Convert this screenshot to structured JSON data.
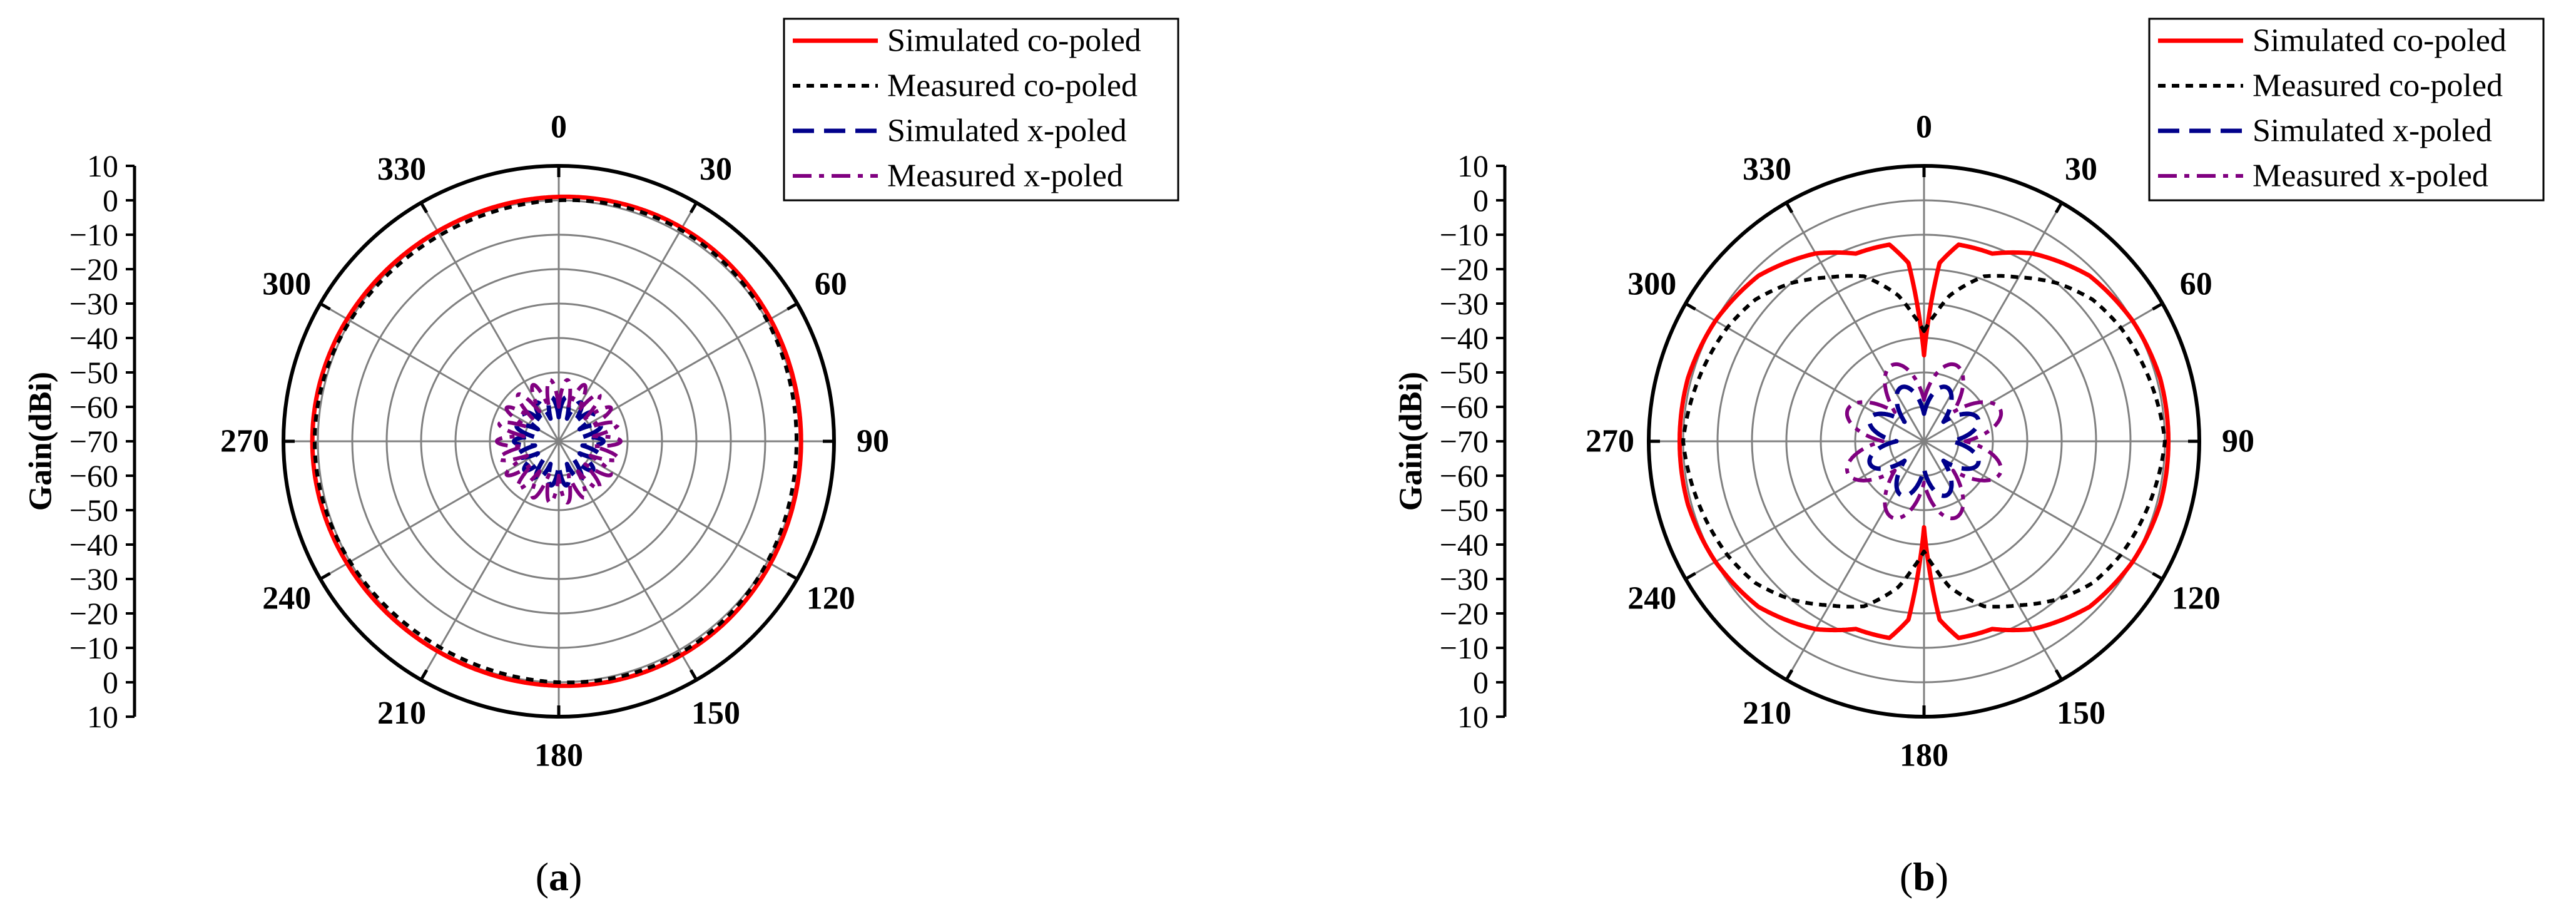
{
  "figure": {
    "captions": [
      "a",
      "b"
    ],
    "paren_open": "(",
    "paren_close": ")"
  },
  "colors": {
    "sim_co": "#ff0000",
    "meas_co": "#000000",
    "sim_x": "#00008b",
    "meas_x": "#800080",
    "grid": "#808080"
  },
  "chart_data": [
    {
      "type": "polar-line",
      "panel": "a",
      "ylabel": "Gain(dBi)",
      "radial_range": [
        -70,
        10
      ],
      "radial_grid": [
        -60,
        -50,
        -40,
        -30,
        -20,
        -10,
        0,
        10
      ],
      "axis_ticks": [
        "10",
        "0",
        "−10",
        "−20",
        "−30",
        "−40",
        "−50",
        "−60",
        "−70",
        "−60",
        "−50",
        "−40",
        "−30",
        "−20",
        "−10",
        "0",
        "10"
      ],
      "angle_labels": [
        "0",
        "30",
        "60",
        "90",
        "120",
        "150",
        "180",
        "210",
        "240",
        "270",
        "300",
        "330"
      ],
      "legend": [
        "Simulated co-poled",
        "Measured co-poled",
        "Simulated x-poled",
        "Measured x-poled"
      ],
      "series": [
        {
          "name": "Simulated co-poled",
          "model": "omni",
          "gain_dbi": 1,
          "ripple_db": 0.6
        },
        {
          "name": "Measured co-poled",
          "model": "omni",
          "gain_dbi": 0,
          "ripple_db": 0.9
        },
        {
          "name": "Simulated x-poled",
          "model": "lobes",
          "base_dbi": -63,
          "amp_db": 6,
          "max_dbi": -55,
          "lobes": 9
        },
        {
          "name": "Measured x-poled",
          "model": "lobes",
          "base_dbi": -60,
          "amp_db": 8,
          "max_dbi": -52,
          "lobes": 11
        }
      ]
    },
    {
      "type": "polar-line",
      "panel": "b",
      "ylabel": "Gain(dBi)",
      "radial_range": [
        -70,
        10
      ],
      "radial_grid": [
        -60,
        -50,
        -40,
        -30,
        -20,
        -10,
        0,
        10
      ],
      "axis_ticks": [
        "10",
        "0",
        "−10",
        "−20",
        "−30",
        "−40",
        "−50",
        "−60",
        "−70",
        "−60",
        "−50",
        "−40",
        "−30",
        "−20",
        "−10",
        "0",
        "10"
      ],
      "angle_labels": [
        "0",
        "30",
        "60",
        "90",
        "120",
        "150",
        "180",
        "210",
        "240",
        "270",
        "300",
        "330"
      ],
      "legend": [
        "Simulated co-poled",
        "Measured co-poled",
        "Simulated x-poled",
        "Measured x-poled"
      ],
      "series": [
        {
          "name": "Simulated co-poled",
          "model": "dipole",
          "angles_deg": [
            0,
            2,
            5,
            10,
            20,
            30,
            45,
            60,
            75,
            90
          ],
          "gain_dbi": [
            -45,
            -35,
            -18,
            -12,
            -12,
            -7,
            -2,
            0,
            1,
            1
          ]
        },
        {
          "name": "Measured co-poled",
          "model": "dipole",
          "angles_deg": [
            0,
            5,
            10,
            20,
            30,
            40,
            50,
            60,
            75,
            90
          ],
          "gain_dbi": [
            -38,
            -33,
            -27,
            -19,
            -15,
            -10,
            -6,
            -4,
            -2,
            0
          ]
        },
        {
          "name": "Simulated x-poled",
          "model": "lobes",
          "base_dbi": -62,
          "amp_db": 9,
          "max_dbi": -50,
          "lobes": 4
        },
        {
          "name": "Measured x-poled",
          "model": "lobes",
          "base_dbi": -58,
          "amp_db": 12,
          "max_dbi": -44,
          "lobes": 4
        }
      ]
    }
  ]
}
